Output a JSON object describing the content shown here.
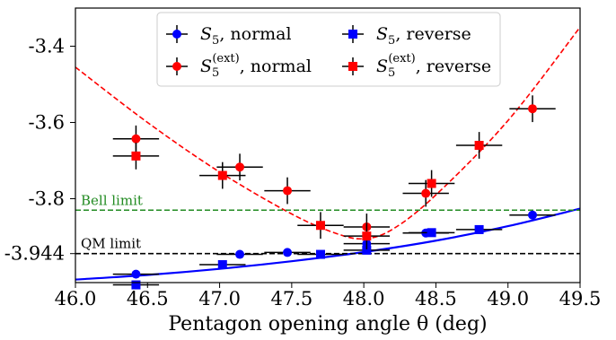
{
  "chart_data": {
    "type": "scatter",
    "xlabel": "Pentagon opening angle θ (deg)",
    "ylabel": "",
    "xlim": [
      46.0,
      49.5
    ],
    "ylim": [
      -4.02,
      -3.3
    ],
    "x_ticks": [
      46.0,
      46.5,
      47.0,
      47.5,
      48.0,
      48.5,
      49.0,
      49.5
    ],
    "x_tick_labels": [
      "46.0",
      "46.5",
      "47.0",
      "47.5",
      "48.0",
      "48.5",
      "49.0",
      "49.5"
    ],
    "y_ticks": [
      -3.944,
      -3.8,
      -3.6,
      -3.4
    ],
    "y_tick_labels": [
      "-3.944",
      "-3.8",
      "-3.6",
      "-3.4"
    ],
    "grid": false,
    "legend_placement": "top-center",
    "legend": [
      {
        "label_main": "S",
        "label_sub": "5",
        "label_sup": "",
        "label_rest": ", normal",
        "color": "#0000ff",
        "marker": "circle"
      },
      {
        "label_main": "S",
        "label_sub": "5",
        "label_sup": "",
        "label_rest": ", reverse",
        "color": "#0000ff",
        "marker": "square"
      },
      {
        "label_main": "S",
        "label_sub": "5",
        "label_sup": "(ext)",
        "label_rest": ", normal",
        "color": "#ff0000",
        "marker": "circle"
      },
      {
        "label_main": "S",
        "label_sub": "5",
        "label_sup": "(ext)",
        "label_rest": ", reverse",
        "color": "#ff0000",
        "marker": "square"
      }
    ],
    "reference_lines": [
      {
        "label": "Bell limit",
        "y": -3.83,
        "color": "#228b22",
        "style": "dashed"
      },
      {
        "label": "QM limit",
        "y": -3.944,
        "color": "#000000",
        "style": "dashed"
      }
    ],
    "series": [
      {
        "color": "#0000ff",
        "marker": "circle",
        "points": [
          {
            "x": 46.42,
            "y": -3.998,
            "xerr": 0.16,
            "yerr": 0.01
          },
          {
            "x": 47.14,
            "y": -3.946,
            "xerr": 0.16,
            "yerr": 0.01
          },
          {
            "x": 47.47,
            "y": -3.941,
            "xerr": 0.16,
            "yerr": 0.01
          },
          {
            "x": 48.02,
            "y": -3.918,
            "xerr": 0.16,
            "yerr": 0.01
          },
          {
            "x": 48.43,
            "y": -3.89,
            "xerr": 0.16,
            "yerr": 0.01
          },
          {
            "x": 49.17,
            "y": -3.843,
            "xerr": 0.16,
            "yerr": 0.01
          }
        ]
      },
      {
        "color": "#0000ff",
        "marker": "square",
        "points": [
          {
            "x": 46.42,
            "y": -4.026,
            "xerr": 0.16,
            "yerr": 0.01
          },
          {
            "x": 47.02,
            "y": -3.973,
            "xerr": 0.16,
            "yerr": 0.01
          },
          {
            "x": 47.7,
            "y": -3.946,
            "xerr": 0.16,
            "yerr": 0.01
          },
          {
            "x": 48.02,
            "y": -3.935,
            "xerr": 0.16,
            "yerr": 0.01
          },
          {
            "x": 48.47,
            "y": -3.889,
            "xerr": 0.16,
            "yerr": 0.01
          },
          {
            "x": 48.8,
            "y": -3.881,
            "xerr": 0.16,
            "yerr": 0.01
          }
        ]
      },
      {
        "color": "#ff0000",
        "marker": "circle",
        "points": [
          {
            "x": 46.42,
            "y": -3.643,
            "xerr": 0.16,
            "yerr": 0.035
          },
          {
            "x": 47.14,
            "y": -3.717,
            "xerr": 0.16,
            "yerr": 0.035
          },
          {
            "x": 47.47,
            "y": -3.779,
            "xerr": 0.16,
            "yerr": 0.035
          },
          {
            "x": 48.02,
            "y": -3.874,
            "xerr": 0.16,
            "yerr": 0.035
          },
          {
            "x": 48.43,
            "y": -3.786,
            "xerr": 0.16,
            "yerr": 0.035
          },
          {
            "x": 49.17,
            "y": -3.564,
            "xerr": 0.16,
            "yerr": 0.035
          }
        ]
      },
      {
        "color": "#ff0000",
        "marker": "square",
        "points": [
          {
            "x": 46.42,
            "y": -3.688,
            "xerr": 0.16,
            "yerr": 0.035
          },
          {
            "x": 47.02,
            "y": -3.739,
            "xerr": 0.16,
            "yerr": 0.035
          },
          {
            "x": 47.7,
            "y": -3.87,
            "xerr": 0.16,
            "yerr": 0.035
          },
          {
            "x": 48.02,
            "y": -3.898,
            "xerr": 0.16,
            "yerr": 0.035
          },
          {
            "x": 48.47,
            "y": -3.76,
            "xerr": 0.16,
            "yerr": 0.035
          },
          {
            "x": 48.8,
            "y": -3.66,
            "xerr": 0.16,
            "yerr": 0.035
          }
        ]
      }
    ],
    "curves": [
      {
        "color": "#0000ff",
        "style": "solid",
        "x": [
          46.0,
          46.5,
          47.0,
          47.5,
          48.0,
          48.5,
          49.0,
          49.5
        ],
        "y": [
          -4.012,
          -4.0,
          -3.984,
          -3.964,
          -3.94,
          -3.91,
          -3.872,
          -3.826
        ]
      },
      {
        "color": "#ff0000",
        "style": "dashed",
        "x": [
          46.0,
          46.5,
          47.0,
          47.5,
          47.8,
          48.0,
          48.2,
          48.5,
          49.0,
          49.5
        ],
        "y": [
          -3.455,
          -3.6,
          -3.73,
          -3.84,
          -3.89,
          -3.905,
          -3.88,
          -3.79,
          -3.595,
          -3.35
        ]
      }
    ]
  }
}
